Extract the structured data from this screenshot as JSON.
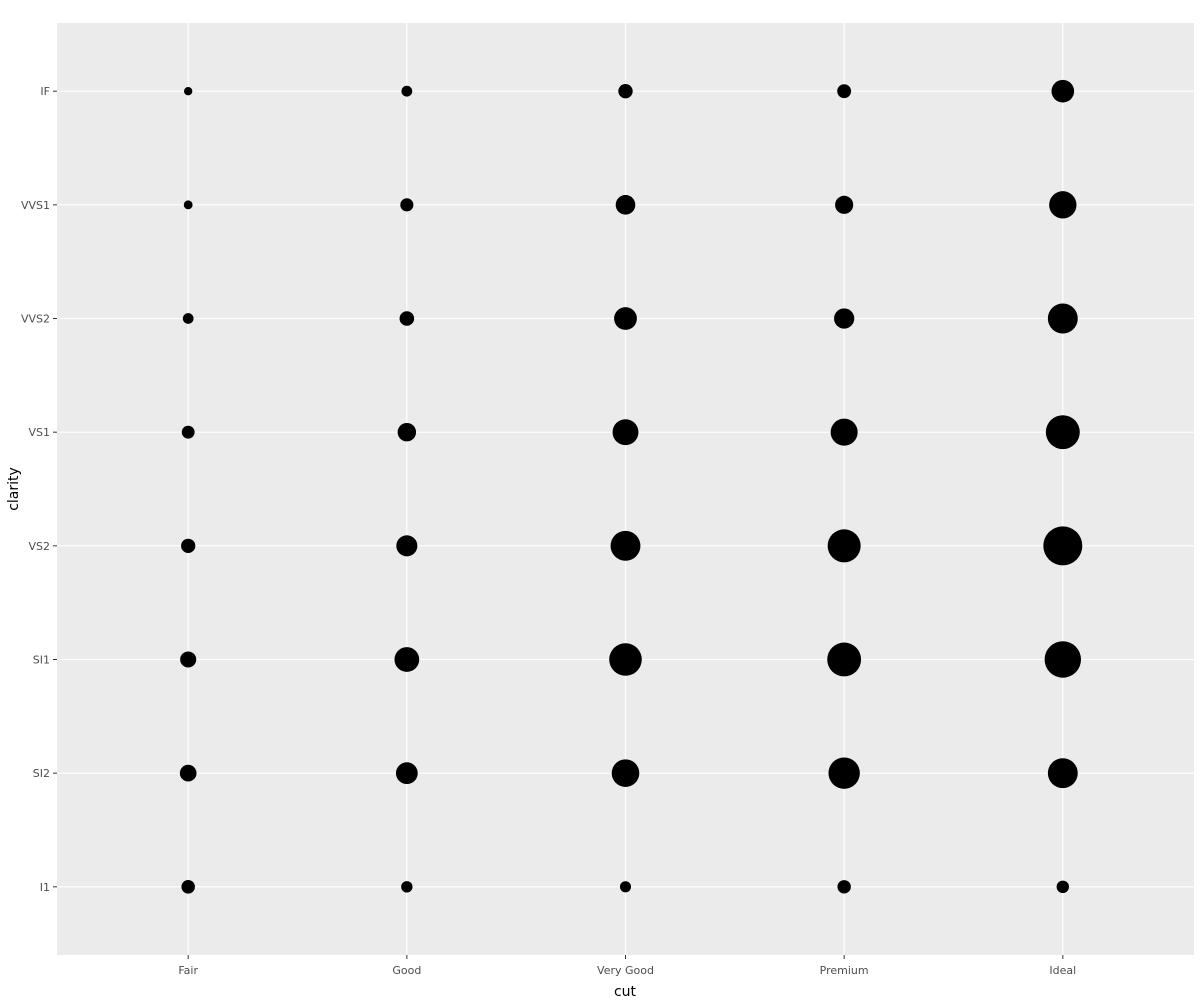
{
  "chart_data": {
    "type": "scatter",
    "title": "",
    "xlabel": "cut",
    "ylabel": "clarity",
    "x_categories": [
      "Fair",
      "Good",
      "Very Good",
      "Premium",
      "Ideal"
    ],
    "y_categories": [
      "I1",
      "SI2",
      "SI1",
      "VS2",
      "VS1",
      "VVS2",
      "VVS1",
      "IF"
    ],
    "grid": true,
    "legend": "none",
    "point_color": "#000000",
    "panel_color": "#ebebeb",
    "points": [
      {
        "x": "Fair",
        "y": "I1",
        "size": 210
      },
      {
        "x": "Fair",
        "y": "SI2",
        "size": 466
      },
      {
        "x": "Fair",
        "y": "SI1",
        "size": 408
      },
      {
        "x": "Fair",
        "y": "VS2",
        "size": 261
      },
      {
        "x": "Fair",
        "y": "VS1",
        "size": 170
      },
      {
        "x": "Fair",
        "y": "VVS2",
        "size": 69
      },
      {
        "x": "Fair",
        "y": "VVS1",
        "size": 17
      },
      {
        "x": "Fair",
        "y": "IF",
        "size": 9
      },
      {
        "x": "Good",
        "y": "I1",
        "size": 96
      },
      {
        "x": "Good",
        "y": "SI2",
        "size": 1081
      },
      {
        "x": "Good",
        "y": "SI1",
        "size": 1560
      },
      {
        "x": "Good",
        "y": "VS2",
        "size": 978
      },
      {
        "x": "Good",
        "y": "VS1",
        "size": 648
      },
      {
        "x": "Good",
        "y": "VVS2",
        "size": 286
      },
      {
        "x": "Good",
        "y": "VVS1",
        "size": 186
      },
      {
        "x": "Good",
        "y": "IF",
        "size": 71
      },
      {
        "x": "Very Good",
        "y": "I1",
        "size": 84
      },
      {
        "x": "Very Good",
        "y": "SI2",
        "size": 2100
      },
      {
        "x": "Very Good",
        "y": "SI1",
        "size": 3240
      },
      {
        "x": "Very Good",
        "y": "VS2",
        "size": 2591
      },
      {
        "x": "Very Good",
        "y": "VS1",
        "size": 1775
      },
      {
        "x": "Very Good",
        "y": "VVS2",
        "size": 1235
      },
      {
        "x": "Very Good",
        "y": "VVS1",
        "size": 789
      },
      {
        "x": "Very Good",
        "y": "IF",
        "size": 268
      },
      {
        "x": "Premium",
        "y": "I1",
        "size": 205
      },
      {
        "x": "Premium",
        "y": "SI2",
        "size": 2949
      },
      {
        "x": "Premium",
        "y": "SI1",
        "size": 3575
      },
      {
        "x": "Premium",
        "y": "VS2",
        "size": 3357
      },
      {
        "x": "Premium",
        "y": "VS1",
        "size": 1989
      },
      {
        "x": "Premium",
        "y": "VVS2",
        "size": 870
      },
      {
        "x": "Premium",
        "y": "VVS1",
        "size": 616
      },
      {
        "x": "Premium",
        "y": "IF",
        "size": 230
      },
      {
        "x": "Ideal",
        "y": "I1",
        "size": 146
      },
      {
        "x": "Ideal",
        "y": "SI2",
        "size": 2598
      },
      {
        "x": "Ideal",
        "y": "SI1",
        "size": 4282
      },
      {
        "x": "Ideal",
        "y": "VS2",
        "size": 5071
      },
      {
        "x": "Ideal",
        "y": "VS1",
        "size": 3589
      },
      {
        "x": "Ideal",
        "y": "VVS2",
        "size": 2606
      },
      {
        "x": "Ideal",
        "y": "VVS1",
        "size": 2047
      },
      {
        "x": "Ideal",
        "y": "IF",
        "size": 1212
      }
    ]
  }
}
